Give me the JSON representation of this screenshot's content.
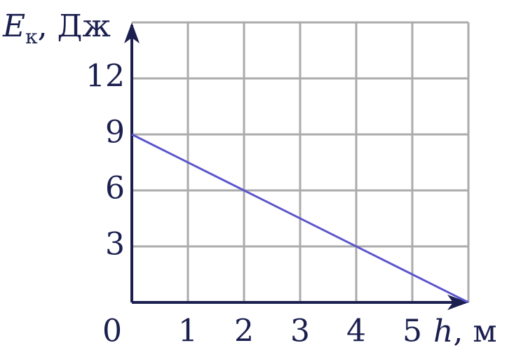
{
  "chart_data": {
    "type": "line",
    "ylabel": {
      "symbol": "E",
      "subscript": "к",
      "unit": ", Дж"
    },
    "xlabel": {
      "symbol": "h",
      "unit": ", м"
    },
    "xlim": [
      0,
      6
    ],
    "ylim": [
      0,
      15
    ],
    "xticks": [
      0,
      1,
      2,
      3,
      4,
      5
    ],
    "yticks": [
      3,
      6,
      9,
      12
    ],
    "grid": true,
    "series": [
      {
        "color": "#5a55cc",
        "x": [
          0,
          6
        ],
        "values": [
          9,
          0
        ]
      }
    ]
  }
}
